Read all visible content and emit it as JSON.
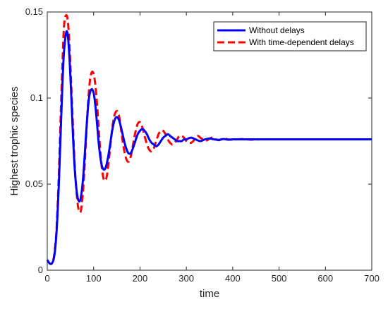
{
  "chart_data": {
    "type": "line",
    "title": "",
    "xlabel": "time",
    "ylabel": "Highest trophic species",
    "xlim": [
      0,
      700
    ],
    "ylim": [
      0,
      0.15
    ],
    "xticks": [
      0,
      100,
      200,
      300,
      400,
      500,
      600,
      700
    ],
    "yticks": [
      0,
      0.05,
      0.1,
      0.15
    ],
    "xtick_labels": [
      "0",
      "100",
      "200",
      "300",
      "400",
      "500",
      "600",
      "700"
    ],
    "ytick_labels": [
      "0",
      "0.05",
      "0.1",
      "0.15"
    ],
    "grid": false,
    "legend_position": "top-right",
    "series": [
      {
        "name": "Without delays",
        "color": "#0000ff",
        "style": "solid",
        "x": [
          0,
          5,
          10,
          15,
          20,
          25,
          30,
          35,
          40,
          44,
          48,
          52,
          56,
          60,
          65,
          70,
          74,
          78,
          82,
          86,
          90,
          95,
          100,
          104,
          108,
          112,
          116,
          120,
          125,
          130,
          135,
          140,
          145,
          150,
          155,
          160,
          165,
          170,
          175,
          180,
          185,
          190,
          195,
          200,
          205,
          210,
          215,
          220,
          225,
          230,
          235,
          240,
          245,
          250,
          255,
          260,
          265,
          270,
          275,
          280,
          285,
          290,
          295,
          300,
          310,
          320,
          330,
          340,
          350,
          360,
          370,
          380,
          390,
          400,
          420,
          440,
          460,
          480,
          500,
          550,
          600,
          650,
          700
        ],
        "y": [
          0.006,
          0.004,
          0.004,
          0.008,
          0.022,
          0.05,
          0.088,
          0.122,
          0.137,
          0.137,
          0.123,
          0.1,
          0.075,
          0.056,
          0.043,
          0.04,
          0.045,
          0.056,
          0.072,
          0.088,
          0.1,
          0.105,
          0.103,
          0.095,
          0.083,
          0.071,
          0.063,
          0.059,
          0.059,
          0.064,
          0.072,
          0.081,
          0.087,
          0.089,
          0.087,
          0.082,
          0.076,
          0.071,
          0.068,
          0.068,
          0.071,
          0.075,
          0.079,
          0.081,
          0.082,
          0.081,
          0.079,
          0.076,
          0.074,
          0.073,
          0.072,
          0.073,
          0.075,
          0.077,
          0.078,
          0.079,
          0.078,
          0.077,
          0.076,
          0.075,
          0.075,
          0.075,
          0.076,
          0.076,
          0.077,
          0.076,
          0.075,
          0.076,
          0.0765,
          0.076,
          0.0757,
          0.0762,
          0.0758,
          0.076,
          0.076,
          0.076,
          0.076,
          0.076,
          0.076,
          0.076,
          0.076,
          0.076,
          0.076
        ]
      },
      {
        "name": "With time-dependent delays",
        "color": "#ff0000",
        "style": "dashed",
        "x": [
          0,
          5,
          10,
          15,
          20,
          25,
          30,
          35,
          38,
          42,
          45,
          48,
          52,
          56,
          60,
          65,
          68,
          72,
          76,
          80,
          84,
          88,
          92,
          96,
          100,
          104,
          108,
          112,
          116,
          120,
          124,
          128,
          132,
          136,
          140,
          144,
          148,
          152,
          156,
          160,
          165,
          170,
          175,
          180,
          185,
          190,
          195,
          200,
          205,
          210,
          215,
          220,
          225,
          230,
          235,
          240,
          245,
          250,
          255,
          260,
          265,
          270,
          275,
          280,
          285,
          290,
          295,
          300,
          305,
          310,
          315,
          320,
          325,
          330,
          335,
          340,
          345,
          350,
          355,
          360,
          370,
          380,
          390,
          400,
          420,
          440,
          460,
          480,
          500,
          550,
          600,
          650,
          700
        ],
        "y": [
          0.006,
          0.004,
          0.004,
          0.009,
          0.024,
          0.056,
          0.098,
          0.136,
          0.146,
          0.148,
          0.143,
          0.13,
          0.106,
          0.08,
          0.057,
          0.04,
          0.035,
          0.034,
          0.042,
          0.058,
          0.078,
          0.097,
          0.11,
          0.115,
          0.114,
          0.107,
          0.094,
          0.078,
          0.064,
          0.055,
          0.052,
          0.054,
          0.062,
          0.072,
          0.082,
          0.089,
          0.092,
          0.092,
          0.088,
          0.08,
          0.071,
          0.065,
          0.063,
          0.066,
          0.073,
          0.08,
          0.085,
          0.086,
          0.083,
          0.078,
          0.073,
          0.07,
          0.069,
          0.071,
          0.075,
          0.079,
          0.081,
          0.081,
          0.079,
          0.076,
          0.074,
          0.073,
          0.074,
          0.076,
          0.078,
          0.078,
          0.077,
          0.075,
          0.074,
          0.074,
          0.075,
          0.077,
          0.078,
          0.077,
          0.076,
          0.075,
          0.0755,
          0.0765,
          0.077,
          0.0765,
          0.0755,
          0.0765,
          0.076,
          0.0758,
          0.0762,
          0.0758,
          0.076,
          0.076,
          0.076,
          0.076,
          0.076,
          0.076,
          0.076
        ]
      }
    ]
  }
}
